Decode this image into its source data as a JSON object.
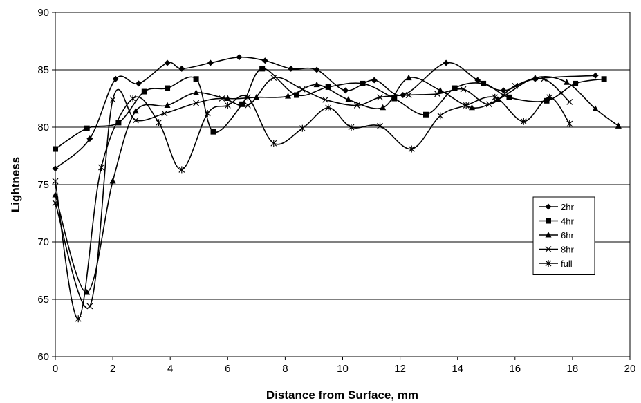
{
  "chart_data": {
    "type": "line",
    "title": "",
    "xlabel": "Distance from Surface, mm",
    "ylabel": "Lightness",
    "xlim": [
      0,
      20
    ],
    "ylim": [
      60,
      90
    ],
    "x_ticks": [
      0,
      2,
      4,
      6,
      8,
      10,
      12,
      14,
      16,
      18,
      20
    ],
    "y_ticks": [
      60,
      65,
      70,
      75,
      80,
      85,
      90
    ],
    "grid": "horizontal",
    "legend_position": "right",
    "line_color": "#000000",
    "series": [
      {
        "name": "2hr",
        "marker": "diamond",
        "x": [
          0,
          1.2,
          2.1,
          2.9,
          3.9,
          4.4,
          5.4,
          6.4,
          7.3,
          8.2,
          9.1,
          10.1,
          11.1,
          12.1,
          13.6,
          14.7,
          15.6,
          16.7,
          18.8
        ],
        "y": [
          76.4,
          79.0,
          84.2,
          83.8,
          85.6,
          85.1,
          85.6,
          86.1,
          85.8,
          85.1,
          85.0,
          83.2,
          84.1,
          82.8,
          85.6,
          84.1,
          83.2,
          84.2,
          84.5
        ]
      },
      {
        "name": "4hr",
        "marker": "square",
        "x": [
          0,
          1.1,
          2.2,
          3.1,
          3.9,
          4.9,
          5.5,
          6.5,
          7.2,
          8.4,
          9.5,
          10.7,
          11.8,
          12.9,
          13.9,
          14.9,
          15.8,
          17.1,
          18.1,
          19.1
        ],
        "y": [
          78.1,
          79.9,
          80.4,
          83.1,
          83.4,
          84.2,
          79.6,
          82.0,
          85.1,
          82.8,
          83.5,
          83.8,
          82.5,
          81.1,
          83.4,
          83.8,
          82.6,
          82.3,
          83.8,
          84.2
        ]
      },
      {
        "name": "6hr",
        "marker": "triangle",
        "x": [
          0,
          1.1,
          2.0,
          2.8,
          3.9,
          4.9,
          6.0,
          7.0,
          8.1,
          9.1,
          10.2,
          11.4,
          12.3,
          13.4,
          14.5,
          15.4,
          16.7,
          17.8,
          18.8,
          19.6
        ],
        "y": [
          74.1,
          65.6,
          75.3,
          81.4,
          81.9,
          83.0,
          82.5,
          82.6,
          82.7,
          83.7,
          82.4,
          81.7,
          84.3,
          83.2,
          81.7,
          82.4,
          84.3,
          83.9,
          81.6,
          80.1
        ]
      },
      {
        "name": "8hr",
        "marker": "x",
        "x": [
          0,
          1.2,
          2.0,
          2.8,
          3.8,
          4.9,
          5.8,
          6.7,
          7.6,
          8.6,
          9.4,
          10.5,
          11.3,
          12.3,
          13.3,
          14.2,
          15.1,
          16.0,
          17.0,
          17.9
        ],
        "y": [
          73.4,
          64.4,
          82.4,
          80.6,
          81.2,
          82.1,
          82.5,
          81.9,
          84.3,
          83.3,
          82.4,
          81.9,
          82.6,
          82.8,
          82.9,
          83.3,
          82.0,
          83.6,
          84.2,
          82.2
        ]
      },
      {
        "name": "full",
        "marker": "star",
        "x": [
          0,
          0.8,
          1.6,
          2.7,
          3.6,
          4.4,
          5.3,
          6.0,
          6.7,
          7.6,
          8.6,
          9.5,
          10.3,
          11.3,
          12.4,
          13.4,
          14.3,
          15.3,
          16.3,
          17.2,
          17.9
        ],
        "y": [
          75.3,
          63.3,
          76.5,
          82.5,
          80.4,
          76.3,
          81.2,
          81.9,
          82.6,
          78.6,
          79.9,
          81.7,
          80.0,
          80.1,
          78.1,
          81.0,
          81.9,
          82.6,
          80.5,
          82.6,
          80.3
        ]
      }
    ]
  }
}
